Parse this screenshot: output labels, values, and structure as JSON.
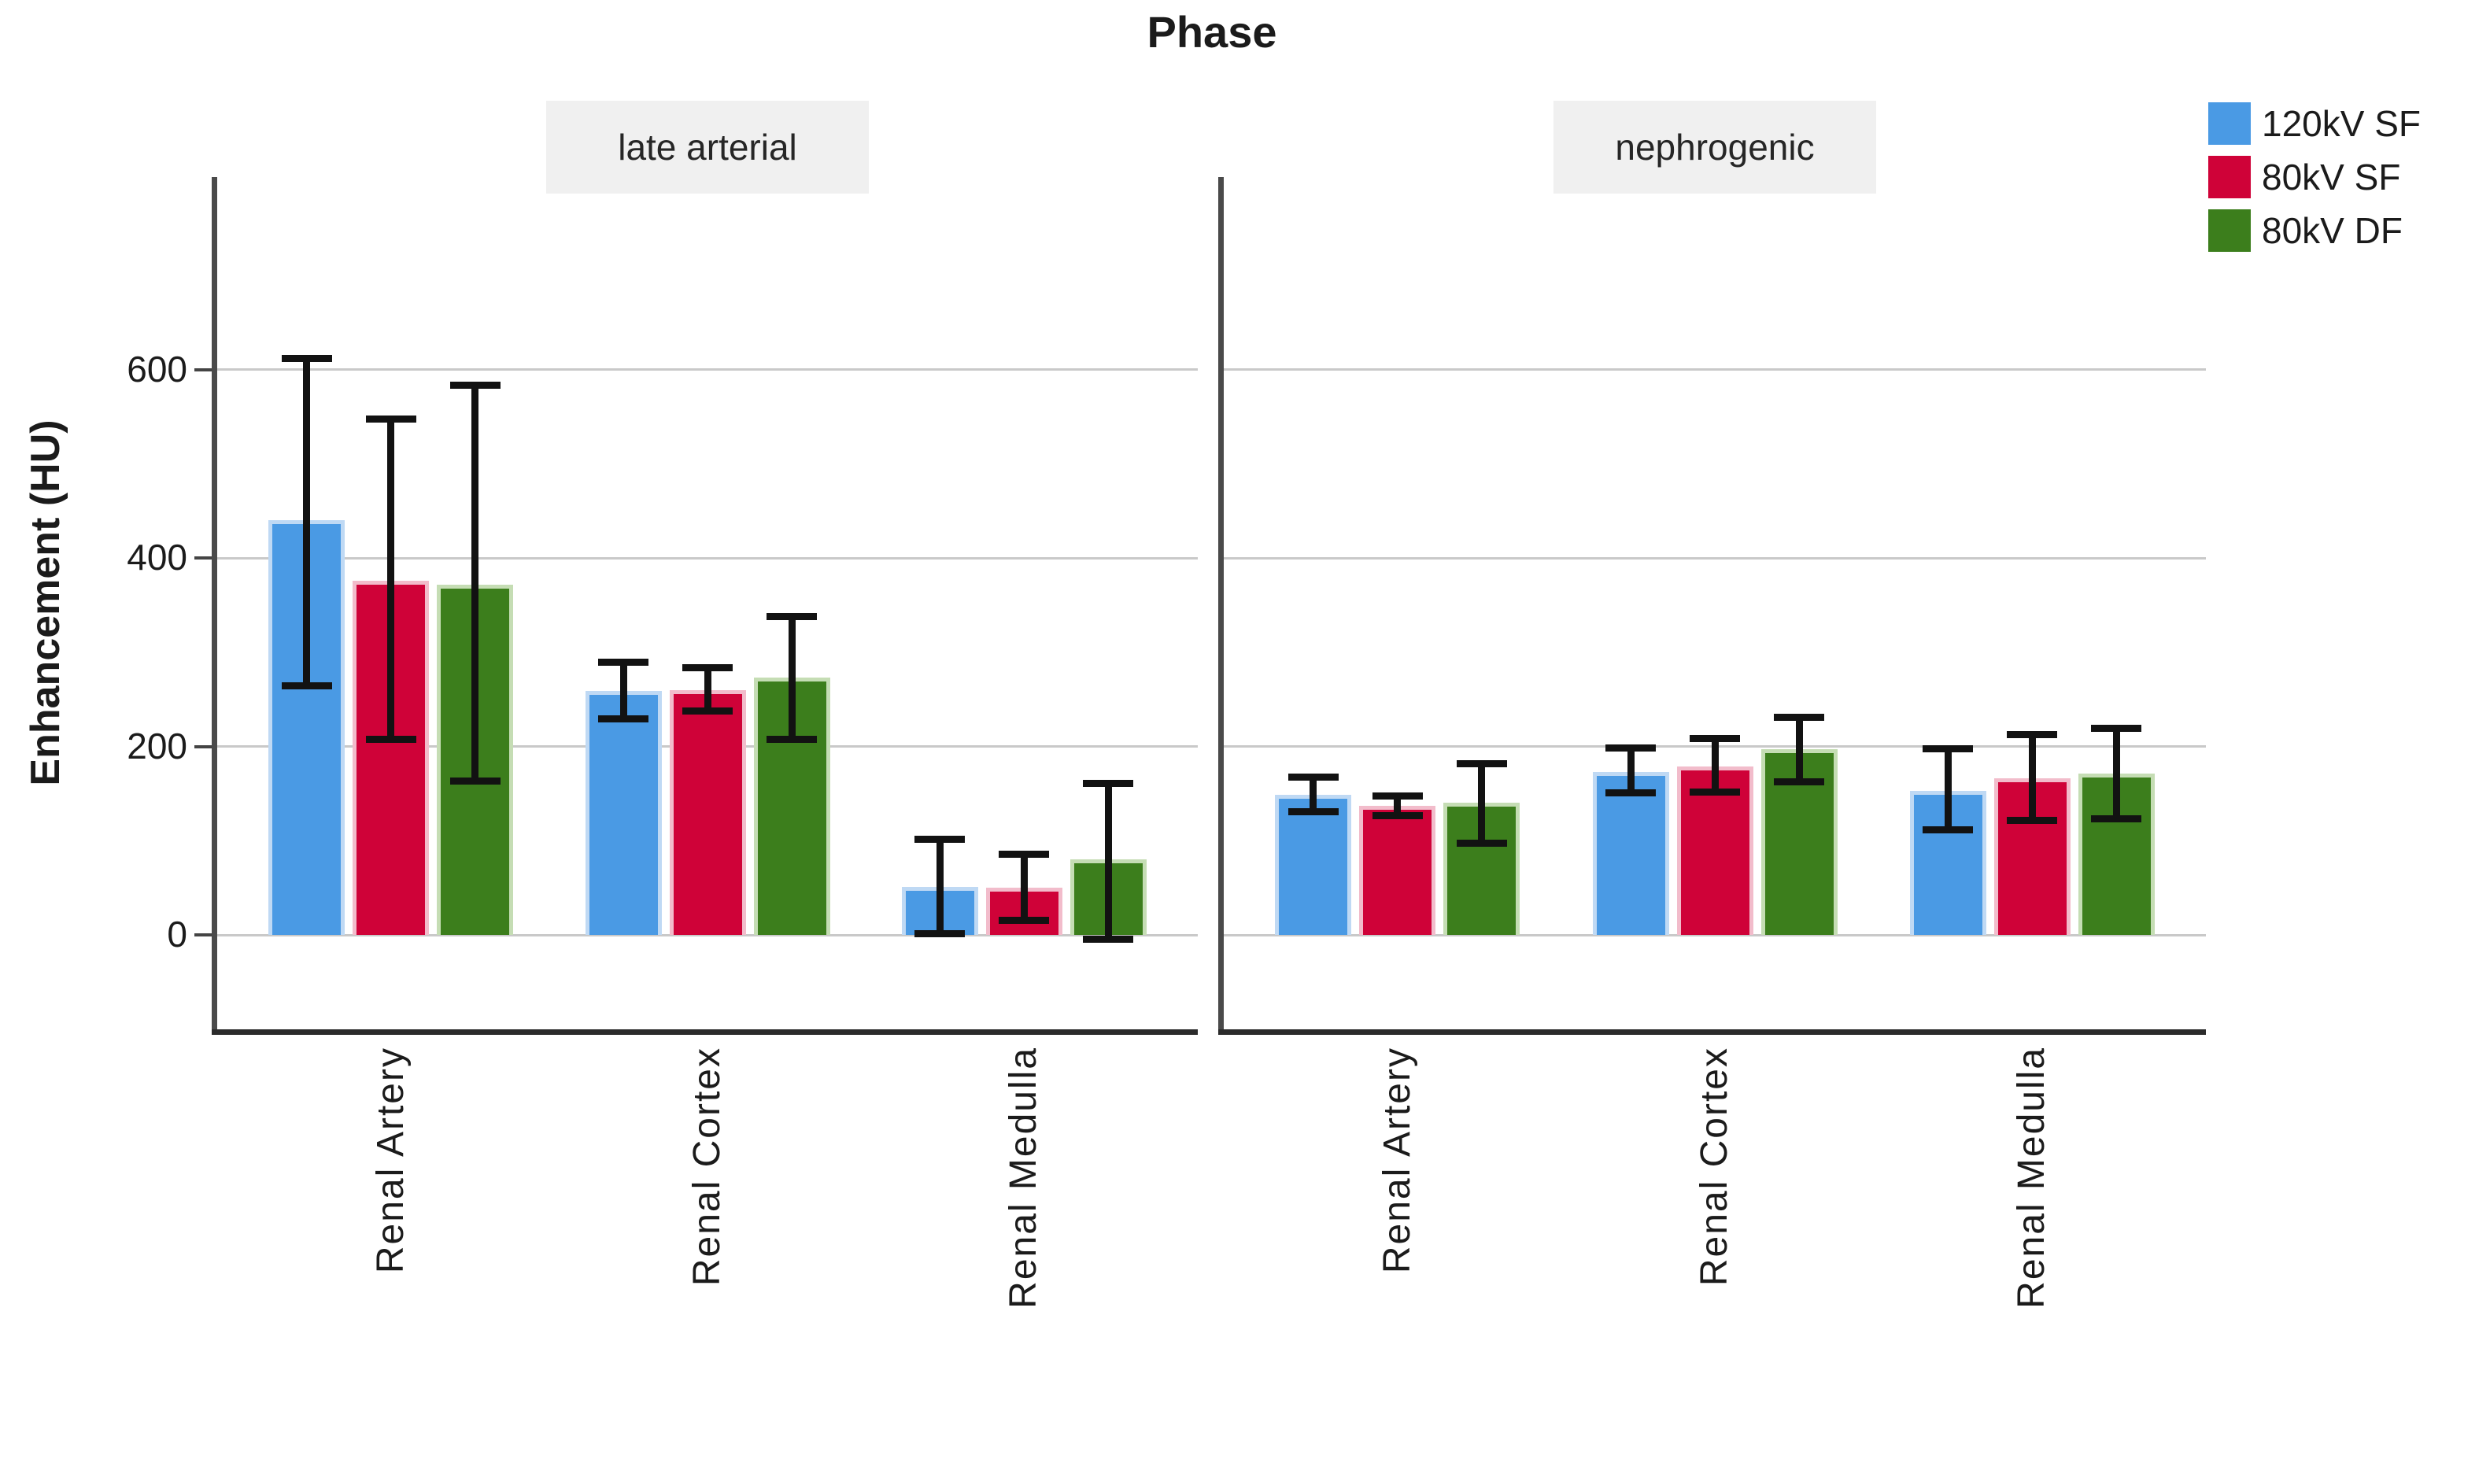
{
  "page": {
    "title": "Phase",
    "background": "#ffffff"
  },
  "chart_data": {
    "type": "bar",
    "title": "Phase",
    "ylabel": "Enhancement (HU)",
    "xlabel": "",
    "grid": true,
    "legend_position": "top-right",
    "y_ticks": [
      0,
      200,
      400,
      600
    ],
    "ylim": [
      -100,
      790
    ],
    "categories": [
      "Renal Artery",
      "Renal Cortex",
      "Renal Medulla"
    ],
    "series": [
      {
        "name": "120kV SF",
        "color": "#4A9AE4",
        "edge_tint": "#BFD9F4"
      },
      {
        "name": "80kV SF",
        "color": "#CF0238",
        "edge_tint": "#F2BCCB"
      },
      {
        "name": "80kV DF",
        "color": "#3C7E1C",
        "edge_tint": "#C5DDB4"
      }
    ],
    "facets": [
      {
        "label": "late arterial",
        "values": [
          [
            440,
            376,
            372
          ],
          [
            259,
            260,
            273
          ],
          [
            51,
            50,
            80
          ]
        ],
        "err_low": [
          [
            265,
            208,
            164
          ],
          [
            230,
            238,
            208
          ],
          [
            2,
            16,
            -4
          ]
        ],
        "err_high": [
          [
            612,
            548,
            584
          ],
          [
            290,
            284,
            338
          ],
          [
            102,
            86,
            161
          ]
        ]
      },
      {
        "label": "nephrogenic",
        "values": [
          [
            149,
            137,
            140
          ],
          [
            173,
            179,
            197
          ],
          [
            153,
            166,
            171
          ]
        ],
        "err_low": [
          [
            131,
            127,
            98
          ],
          [
            151,
            152,
            163
          ],
          [
            112,
            122,
            124
          ]
        ],
        "err_high": [
          [
            168,
            148,
            182
          ],
          [
            199,
            209,
            231
          ],
          [
            198,
            213,
            220
          ]
        ]
      }
    ]
  }
}
